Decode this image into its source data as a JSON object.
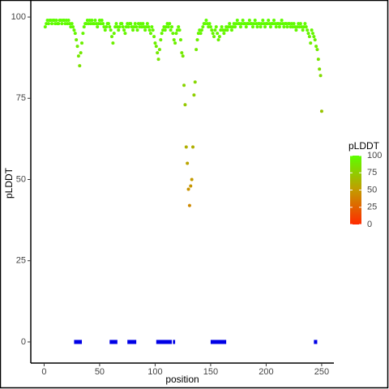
{
  "chart_data": {
    "type": "scatter",
    "x_label": "position",
    "y_label": "pLDDT",
    "xlim": [
      -12,
      261
    ],
    "ylim": [
      -6.5,
      105
    ],
    "xticks": [
      0,
      50,
      100,
      150,
      200,
      250
    ],
    "yticks": [
      0,
      25,
      50,
      75,
      100
    ],
    "x": [
      1,
      2,
      3,
      4,
      5,
      6,
      7,
      8,
      9,
      10,
      11,
      12,
      13,
      14,
      15,
      16,
      17,
      18,
      19,
      20,
      21,
      22,
      23,
      24,
      25,
      26,
      27,
      28,
      29,
      30,
      31,
      32,
      33,
      34,
      35,
      36,
      37,
      38,
      39,
      40,
      41,
      42,
      43,
      44,
      45,
      46,
      47,
      48,
      49,
      50,
      51,
      52,
      53,
      54,
      55,
      56,
      57,
      58,
      59,
      60,
      61,
      62,
      63,
      64,
      65,
      66,
      67,
      68,
      69,
      70,
      71,
      72,
      73,
      74,
      75,
      76,
      77,
      78,
      79,
      80,
      81,
      82,
      83,
      84,
      85,
      86,
      87,
      88,
      89,
      90,
      91,
      92,
      93,
      94,
      95,
      96,
      97,
      98,
      99,
      100,
      101,
      102,
      103,
      104,
      105,
      106,
      107,
      108,
      109,
      110,
      111,
      112,
      113,
      114,
      115,
      116,
      117,
      118,
      119,
      120,
      121,
      122,
      123,
      124,
      125,
      126,
      127,
      128,
      129,
      130,
      131,
      132,
      133,
      134,
      135,
      136,
      137,
      138,
      139,
      140,
      141,
      142,
      143,
      144,
      145,
      146,
      147,
      148,
      149,
      150,
      151,
      152,
      153,
      154,
      155,
      156,
      157,
      158,
      159,
      160,
      161,
      162,
      163,
      164,
      165,
      166,
      167,
      168,
      169,
      170,
      171,
      172,
      173,
      174,
      175,
      176,
      177,
      178,
      179,
      180,
      181,
      182,
      183,
      184,
      185,
      186,
      187,
      188,
      189,
      190,
      191,
      192,
      193,
      194,
      195,
      196,
      197,
      198,
      199,
      200,
      201,
      202,
      203,
      204,
      205,
      206,
      207,
      208,
      209,
      210,
      211,
      212,
      213,
      214,
      215,
      216,
      217,
      218,
      219,
      220,
      221,
      222,
      223,
      224,
      225,
      226,
      227,
      228,
      229,
      230,
      231,
      232,
      233,
      234,
      235,
      236,
      237,
      238,
      239,
      240,
      241,
      242,
      243,
      244,
      245,
      246,
      247,
      248,
      249,
      250
    ],
    "values": [
      97,
      98,
      99,
      98,
      99,
      99,
      98,
      99,
      99,
      98,
      99,
      98,
      98,
      99,
      99,
      98,
      99,
      99,
      98,
      99,
      98,
      99,
      98,
      97,
      98,
      97,
      96,
      95,
      93,
      91,
      88,
      85,
      89,
      92,
      95,
      97,
      98,
      98,
      99,
      98,
      99,
      98,
      99,
      98,
      98,
      99,
      98,
      97,
      98,
      99,
      98,
      99,
      98,
      97,
      96,
      97,
      98,
      98,
      97,
      96,
      94,
      92,
      95,
      97,
      98,
      97,
      96,
      97,
      98,
      98,
      97,
      96,
      95,
      97,
      98,
      97,
      98,
      98,
      97,
      96,
      97,
      98,
      97,
      96,
      98,
      97,
      98,
      97,
      98,
      97,
      96,
      97,
      98,
      97,
      96,
      95,
      97,
      96,
      94,
      92,
      91,
      89,
      87,
      90,
      93,
      95,
      96,
      97,
      96,
      97,
      98,
      97,
      98,
      96,
      97,
      95,
      93,
      92,
      95,
      96,
      97,
      96,
      93,
      89,
      88,
      79,
      73,
      60,
      55,
      47,
      42,
      48,
      50,
      60,
      76,
      80,
      90,
      93,
      95,
      96,
      95,
      96,
      97,
      98,
      98,
      99,
      98,
      97,
      98,
      97,
      96,
      95,
      94,
      96,
      97,
      95,
      93,
      94,
      96,
      97,
      96,
      95,
      96,
      97,
      96,
      97,
      98,
      97,
      96,
      97,
      98,
      97,
      98,
      99,
      98,
      98,
      97,
      98,
      99,
      98,
      98,
      97,
      98,
      98,
      99,
      98,
      98,
      97,
      98,
      99,
      98,
      97,
      98,
      98,
      97,
      98,
      99,
      98,
      97,
      98,
      98,
      99,
      98,
      97,
      98,
      98,
      99,
      98,
      97,
      98,
      98,
      97,
      98,
      99,
      98,
      97,
      98,
      98,
      97,
      98,
      98,
      97,
      98,
      97,
      98,
      97,
      96,
      97,
      98,
      97,
      98,
      97,
      96,
      97,
      98,
      97,
      96,
      95,
      94,
      92,
      96,
      95,
      94,
      93,
      91,
      90,
      87,
      84,
      82,
      71
    ],
    "colormap": [
      "#ff2a00",
      "#c49a00",
      "#5cff00"
    ],
    "colorlim": [
      0,
      100
    ],
    "legend_title": "pLDDT",
    "legend_ticks": [
      0,
      25,
      50,
      75,
      100
    ],
    "bars": {
      "color": "#0000e6",
      "y": 0,
      "ranges": [
        [
          27,
          34
        ],
        [
          59,
          66
        ],
        [
          75,
          83
        ],
        [
          101,
          115
        ],
        [
          116,
          118
        ],
        [
          150,
          164
        ],
        [
          243,
          246
        ]
      ]
    }
  }
}
